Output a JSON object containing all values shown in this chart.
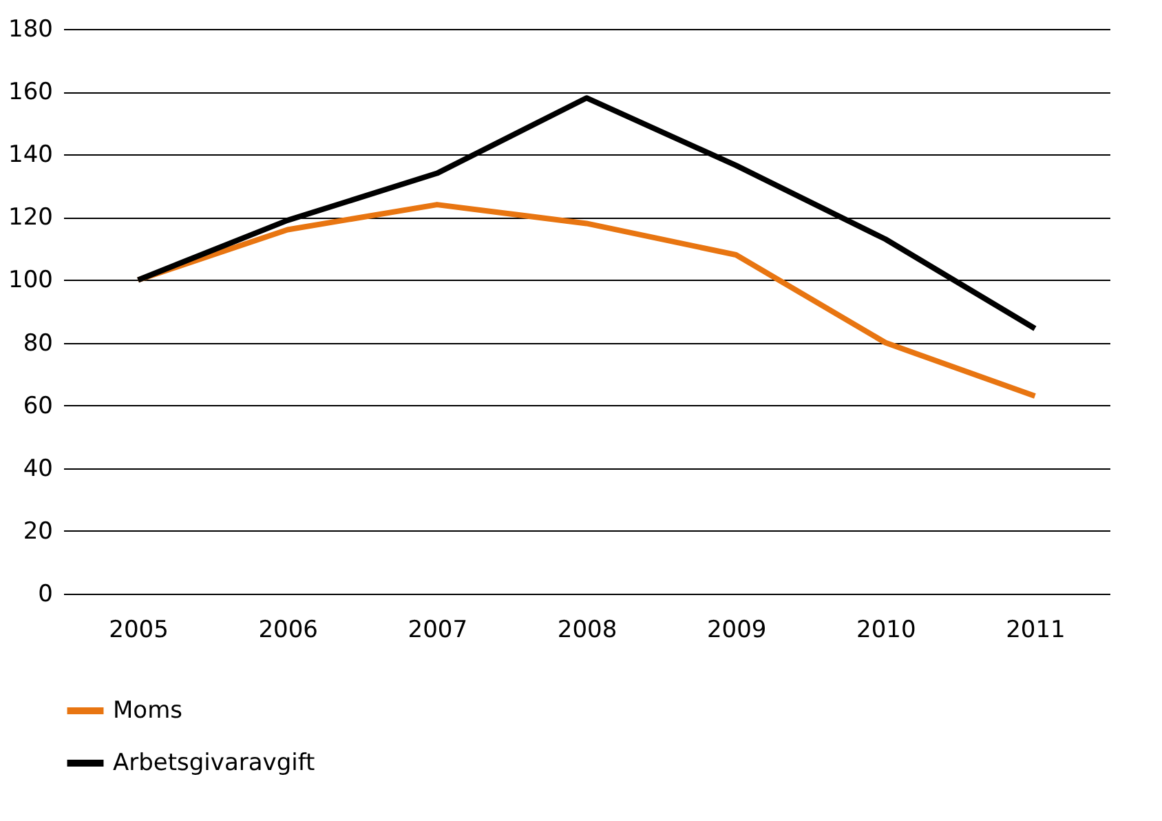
{
  "chart_data": {
    "type": "line",
    "categories": [
      "2005",
      "2006",
      "2007",
      "2008",
      "2009",
      "2010",
      "2011"
    ],
    "series": [
      {
        "name": "Moms",
        "color": "#e87511",
        "values": [
          100,
          116,
          124,
          118,
          108,
          80,
          63
        ]
      },
      {
        "name": "Arbetsgivaravgift",
        "color": "#000000",
        "values": [
          100,
          119,
          134,
          158,
          136.5,
          113,
          84.5
        ]
      }
    ],
    "ylim": [
      0,
      180
    ],
    "yticks": [
      0,
      20,
      40,
      60,
      80,
      100,
      120,
      140,
      160,
      180
    ],
    "grid": "y",
    "legend": "bottom left",
    "marker": "none",
    "line_style": "solid"
  }
}
